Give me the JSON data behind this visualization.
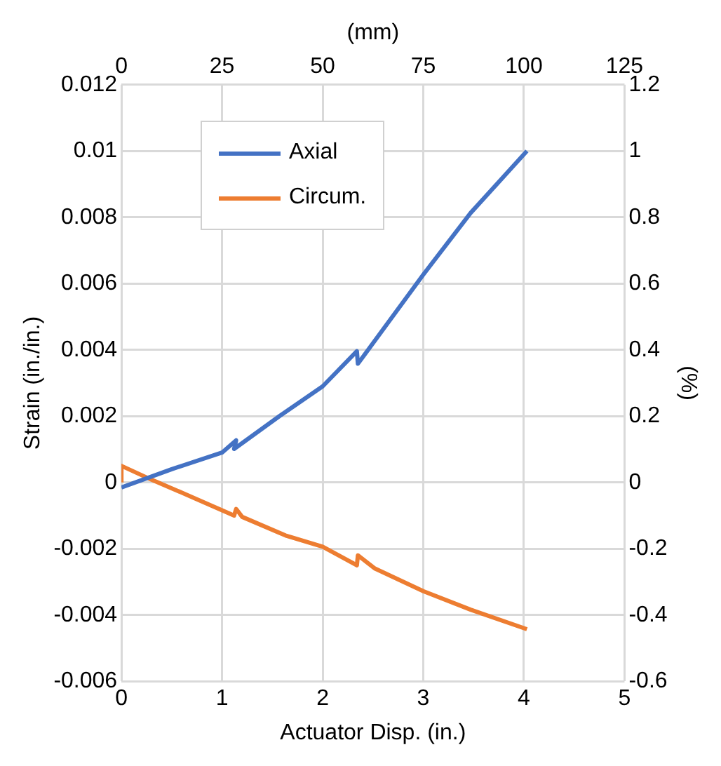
{
  "chart_data": {
    "type": "line",
    "xlabel": "Actuator Disp. (in.)",
    "ylabel": "Strain (in./in.)",
    "y2label": "(%)",
    "x2label": "(mm)",
    "xlim": [
      0,
      5
    ],
    "xticks": [
      0,
      1,
      2,
      3,
      4,
      5
    ],
    "x2lim": [
      0,
      125
    ],
    "x2ticks": [
      0,
      25,
      50,
      75,
      100,
      125
    ],
    "ylim": [
      -0.006,
      0.012
    ],
    "yticks": [
      -0.006,
      -0.004,
      -0.002,
      0,
      0.002,
      0.004,
      0.006,
      0.008,
      0.01,
      0.012
    ],
    "y2lim": [
      -0.6,
      1.2
    ],
    "y2ticks": [
      -0.6,
      -0.4,
      -0.2,
      0,
      0.2,
      0.4,
      0.6,
      0.8,
      1,
      1.2
    ],
    "grid": true,
    "legend": "top left",
    "marker": "none",
    "line_style": "solid",
    "series": [
      {
        "name": "Axial",
        "color": "#4472c4",
        "x": [
          0,
          0.5,
          1,
          1.14,
          1.12,
          1.57,
          2,
          2.34,
          2.35,
          3,
          3.47,
          4.03
        ],
        "values": [
          -0.00015,
          0.0004,
          0.0009,
          0.00127,
          0.00101,
          0.002,
          0.0029,
          0.00396,
          0.00358,
          0.00627,
          0.00813,
          0.01
        ]
      },
      {
        "name": "Circum.",
        "color": "#ed7d31",
        "x": [
          0,
          0,
          0.25,
          0.73,
          1.12,
          1.14,
          1.2,
          1.63,
          2,
          2.34,
          2.35,
          2.52,
          3,
          3.47,
          4.03
        ],
        "values": [
          0,
          0.0005,
          0.00015,
          -0.00048,
          -0.001,
          -0.0008,
          -0.00104,
          -0.0016,
          -0.00194,
          -0.0025,
          -0.0022,
          -0.0026,
          -0.00328,
          -0.00384,
          -0.00443
        ]
      }
    ]
  }
}
